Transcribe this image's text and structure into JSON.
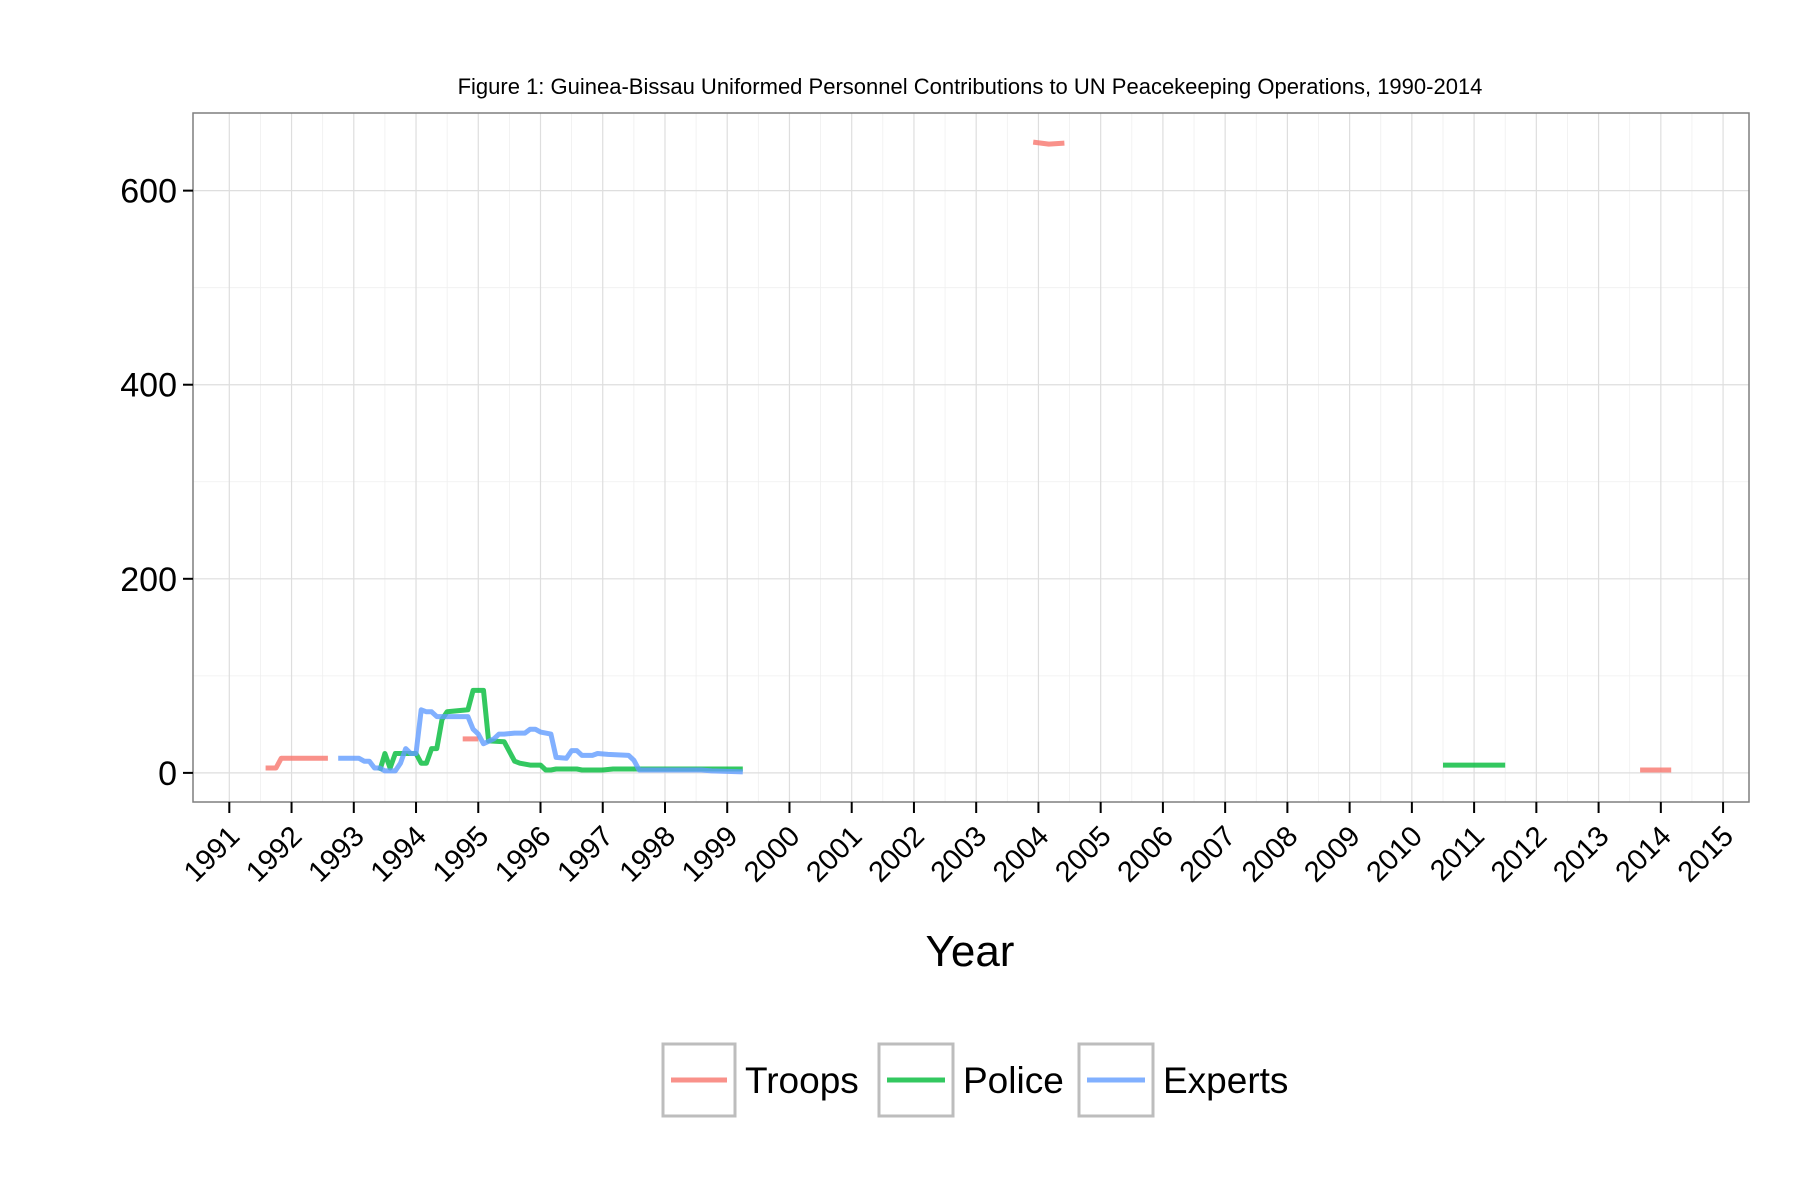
{
  "chart_data": {
    "type": "line",
    "title": "Figure 1: Guinea-Bissau Uniformed Personnel Contributions to UN Peacekeeping Operations, 1990-2014",
    "xlabel": "Year",
    "ylabel": "",
    "x_type": "date",
    "xlim": [
      "1990-06",
      "2015-06"
    ],
    "ylim": [
      -30,
      680
    ],
    "x_ticks": [
      "1991",
      "1992",
      "1993",
      "1994",
      "1995",
      "1996",
      "1997",
      "1998",
      "1999",
      "2000",
      "2001",
      "2002",
      "2003",
      "2004",
      "2005",
      "2006",
      "2007",
      "2008",
      "2009",
      "2010",
      "2011",
      "2012",
      "2013",
      "2014",
      "2015"
    ],
    "y_ticks": [
      0,
      200,
      400,
      600
    ],
    "grid": true,
    "legend_position": "bottom",
    "series": [
      {
        "name": "Troops",
        "color": "#F8766D",
        "segments": [
          [
            [
              "1991-08",
              5
            ],
            [
              "1991-10",
              5
            ],
            [
              "1991-11",
              15
            ],
            [
              "1992-02",
              15
            ],
            [
              "1992-06",
              15
            ],
            [
              "1992-08",
              15
            ]
          ],
          [
            [
              "1994-10",
              35
            ],
            [
              "1995-01",
              35
            ]
          ],
          [
            [
              "2003-12",
              650
            ],
            [
              "2004-03",
              648
            ],
            [
              "2004-06",
              649
            ]
          ],
          [
            [
              "2013-09",
              3
            ],
            [
              "2014-03",
              3
            ]
          ]
        ]
      },
      {
        "name": "Police",
        "color": "#00BA38",
        "segments": [
          [
            [
              "1993-06",
              2
            ],
            [
              "1993-07",
              20
            ],
            [
              "1993-08",
              5
            ],
            [
              "1993-09",
              20
            ],
            [
              "1994-01",
              20
            ],
            [
              "1994-02",
              10
            ],
            [
              "1994-03",
              10
            ],
            [
              "1994-04",
              25
            ],
            [
              "1994-05",
              25
            ],
            [
              "1994-06",
              55
            ],
            [
              "1994-07",
              63
            ],
            [
              "1994-11",
              65
            ],
            [
              "1994-12",
              85
            ],
            [
              "1995-02",
              85
            ],
            [
              "1995-03",
              33
            ],
            [
              "1995-06",
              32
            ],
            [
              "1995-08",
              12
            ],
            [
              "1995-09",
              10
            ],
            [
              "1995-11",
              8
            ],
            [
              "1996-01",
              8
            ],
            [
              "1996-02",
              3
            ],
            [
              "1996-03",
              3
            ],
            [
              "1996-04",
              4
            ],
            [
              "1996-08",
              4
            ],
            [
              "1996-09",
              3
            ],
            [
              "1997-01",
              3
            ],
            [
              "1997-03",
              4
            ],
            [
              "1999-01",
              4
            ],
            [
              "1999-04",
              4
            ]
          ],
          [
            [
              "2010-07",
              8
            ],
            [
              "2011-07",
              8
            ]
          ]
        ]
      },
      {
        "name": "Experts",
        "color": "#619CFF",
        "segments": [
          [
            [
              "1992-10",
              15
            ],
            [
              "1993-02",
              15
            ],
            [
              "1993-03",
              12
            ],
            [
              "1993-04",
              12
            ],
            [
              "1993-05",
              5
            ],
            [
              "1993-06",
              5
            ],
            [
              "1993-07",
              2
            ],
            [
              "1993-09",
              2
            ],
            [
              "1993-10",
              10
            ],
            [
              "1993-11",
              25
            ],
            [
              "1993-12",
              20
            ],
            [
              "1994-01",
              20
            ],
            [
              "1994-02",
              65
            ],
            [
              "1994-03",
              63
            ],
            [
              "1994-04",
              63
            ],
            [
              "1994-05",
              58
            ],
            [
              "1994-11",
              58
            ],
            [
              "1994-12",
              45
            ],
            [
              "1995-01",
              40
            ],
            [
              "1995-02",
              30
            ],
            [
              "1995-04",
              35
            ],
            [
              "1995-05",
              40
            ],
            [
              "1995-06",
              40
            ],
            [
              "1995-08",
              41
            ],
            [
              "1995-10",
              41
            ],
            [
              "1995-11",
              45
            ],
            [
              "1995-12",
              45
            ],
            [
              "1996-01",
              42
            ],
            [
              "1996-03",
              40
            ],
            [
              "1996-04",
              16
            ],
            [
              "1996-06",
              15
            ],
            [
              "1996-07",
              23
            ],
            [
              "1996-08",
              23
            ],
            [
              "1996-09",
              18
            ],
            [
              "1996-11",
              18
            ],
            [
              "1996-12",
              20
            ],
            [
              "1997-02",
              19
            ],
            [
              "1997-06",
              18
            ],
            [
              "1997-07",
              13
            ],
            [
              "1997-08",
              3
            ],
            [
              "1998-08",
              3
            ],
            [
              "1998-10",
              2
            ],
            [
              "1999-04",
              1
            ]
          ]
        ]
      }
    ]
  }
}
